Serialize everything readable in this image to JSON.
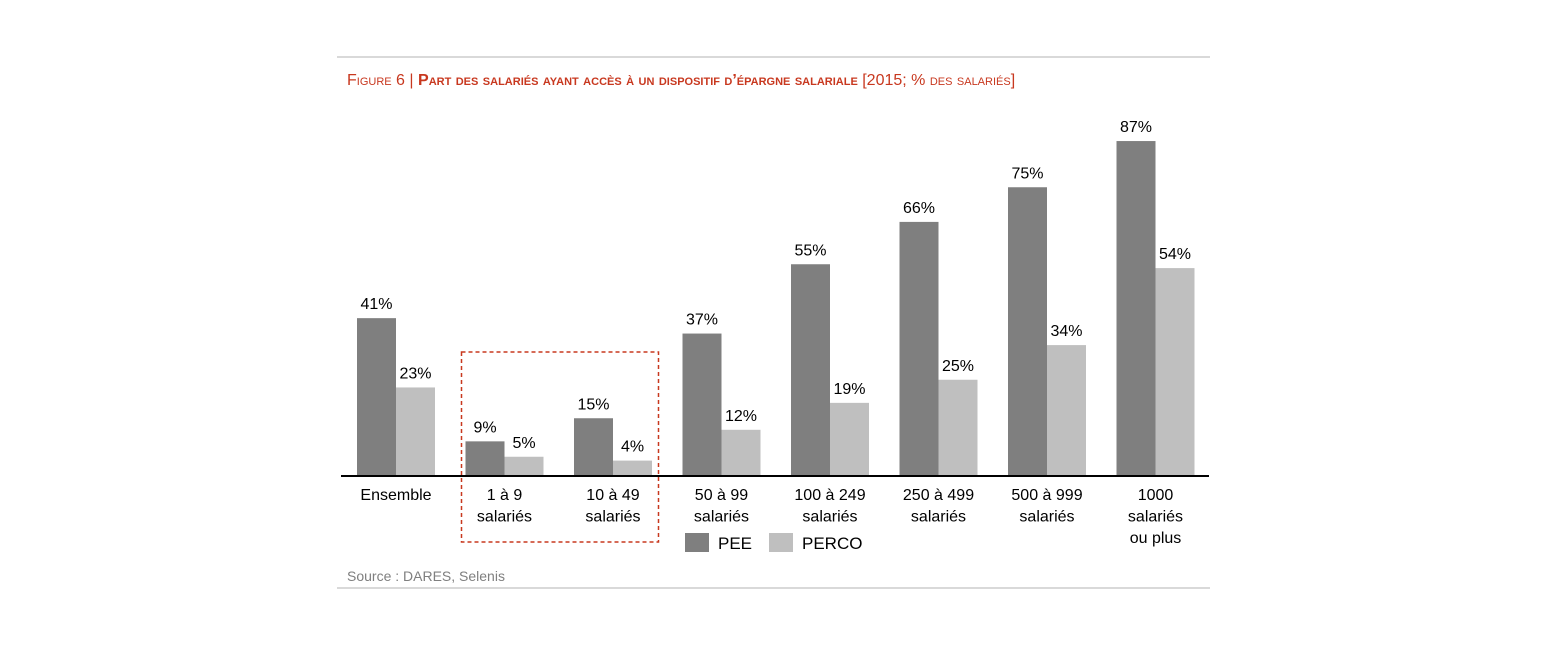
{
  "figure": {
    "title_prefix": "Figure 6",
    "title_sep": " | ",
    "title_main": "Part des salariés ayant accès à un dispositif d’épargne salariale",
    "title_suffix": " [2015; % des salariés]",
    "source": "Source : DARES, Selenis"
  },
  "chart_data": {
    "type": "bar",
    "title": "Part des salariés ayant accès à un dispositif d’épargne salariale [2015; % des salariés]",
    "categories": [
      [
        "Ensemble"
      ],
      [
        "1 à 9",
        "salariés"
      ],
      [
        "10 à 49",
        "salariés"
      ],
      [
        "50 à 99",
        "salariés"
      ],
      [
        "100 à 249",
        "salariés"
      ],
      [
        "250 à 499",
        "salariés"
      ],
      [
        "500 à 999",
        "salariés"
      ],
      [
        "1000",
        "salariés",
        "ou plus"
      ]
    ],
    "series": [
      {
        "name": "PEE",
        "color": "#7f7f7f",
        "values": [
          41,
          9,
          15,
          37,
          55,
          66,
          75,
          87
        ],
        "labels": [
          "41%",
          "9%",
          "15%",
          "37%",
          "55%",
          "66%",
          "75%",
          "87%"
        ]
      },
      {
        "name": "PERCO",
        "color": "#bfbfbf",
        "values": [
          23,
          5,
          4,
          12,
          19,
          25,
          34,
          54
        ],
        "labels": [
          "23%",
          "5%",
          "4%",
          "12%",
          "19%",
          "25%",
          "34%",
          "54%"
        ]
      }
    ],
    "ylim": [
      0,
      100
    ],
    "unit": "%",
    "grid": false,
    "legend": "bottom-center",
    "highlight": {
      "categories": [
        1,
        2
      ],
      "style": "dashed",
      "color": "#c8381f"
    }
  }
}
